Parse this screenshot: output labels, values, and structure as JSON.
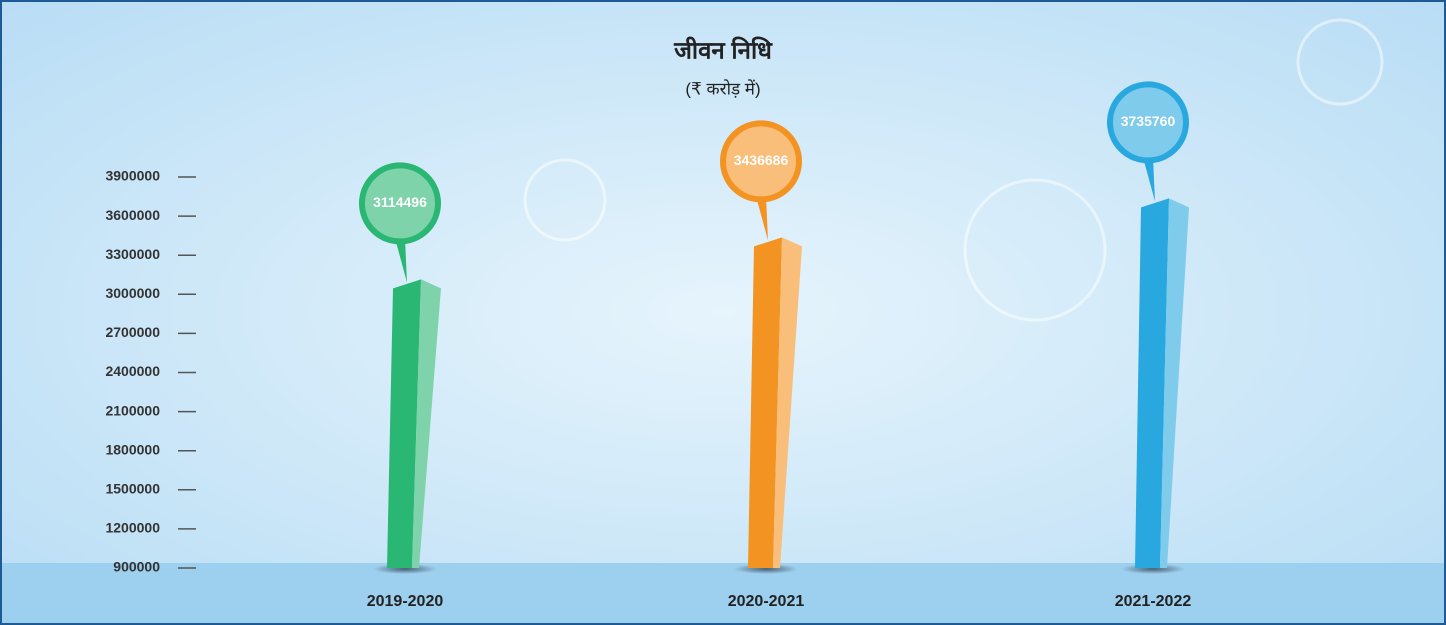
{
  "chart_data": {
    "type": "bar",
    "title": "जीवन निधि",
    "subtitle": "(₹ करोड़ में)",
    "categories": [
      "2019-2020",
      "2020-2021",
      "2021-2022"
    ],
    "values": [
      3114496,
      3436686,
      3735760
    ],
    "colors": [
      "#2ab673",
      "#f39322",
      "#29a8e0"
    ],
    "ylim": [
      900000,
      3900000
    ],
    "yticks": [
      900000,
      1200000,
      1500000,
      1800000,
      2100000,
      2400000,
      2700000,
      3000000,
      3300000,
      3600000,
      3900000
    ]
  }
}
